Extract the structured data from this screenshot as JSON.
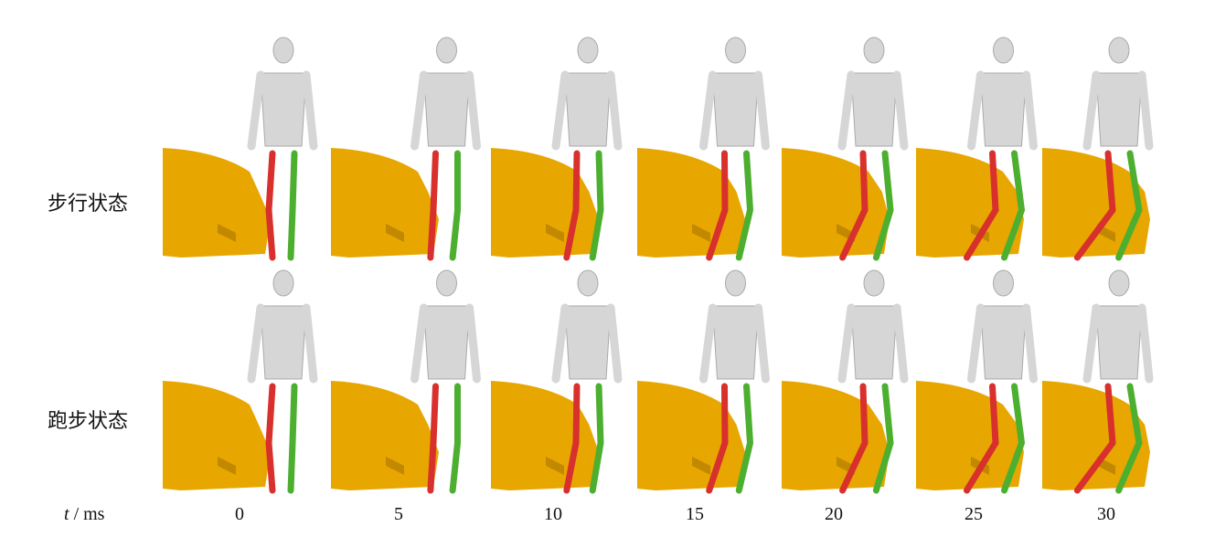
{
  "figure": {
    "rows": [
      {
        "label": "步行状态"
      },
      {
        "label": "跑步状态"
      }
    ],
    "time_axis": {
      "variable": "t",
      "unit": "/ ms",
      "ticks": [
        "0",
        "5",
        "10",
        "15",
        "20",
        "25",
        "30"
      ]
    },
    "colors": {
      "vehicle": "#e8a600",
      "body": "#d6d6d6",
      "struck_leg": "#d8302c",
      "support_leg": "#4caf30"
    }
  }
}
